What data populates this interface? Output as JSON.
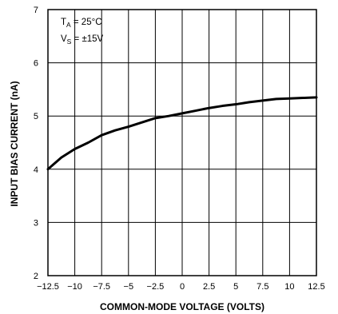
{
  "chart_data": {
    "type": "line",
    "title": "",
    "xlabel": "COMMON-MODE VOLTAGE (VOLTS)",
    "ylabel": "INPUT BIAS CURRENT (nA)",
    "xlim": [
      -12.5,
      12.5
    ],
    "ylim": [
      2,
      7
    ],
    "grid": true,
    "x_ticks": [
      "-12.5",
      "-10",
      "-7.5",
      "-5",
      "-2.5",
      "0",
      "2.5",
      "5",
      "7.5",
      "10",
      "12.5"
    ],
    "y_ticks": [
      "2",
      "3",
      "4",
      "5",
      "6",
      "7"
    ],
    "series": [
      {
        "x": [
          -12.5,
          -11.25,
          -10,
          -8.75,
          -7.5,
          -6.25,
          -5,
          -3.75,
          -2.5,
          -1.25,
          0,
          1.25,
          2.5,
          3.75,
          5,
          6.25,
          7.5,
          8.75,
          10,
          11.25,
          12.5
        ],
        "y": [
          4.0,
          4.22,
          4.38,
          4.5,
          4.64,
          4.73,
          4.8,
          4.88,
          4.96,
          5.0,
          5.05,
          5.1,
          5.15,
          5.19,
          5.22,
          5.26,
          5.29,
          5.32,
          5.33,
          5.34,
          5.35
        ]
      }
    ],
    "annotation": {
      "line1": "T",
      "line1_sub": "A",
      "line1_rest": " = 25°C",
      "line2": "V",
      "line2_sub": "S",
      "line2_rest": " = ±15V"
    }
  }
}
